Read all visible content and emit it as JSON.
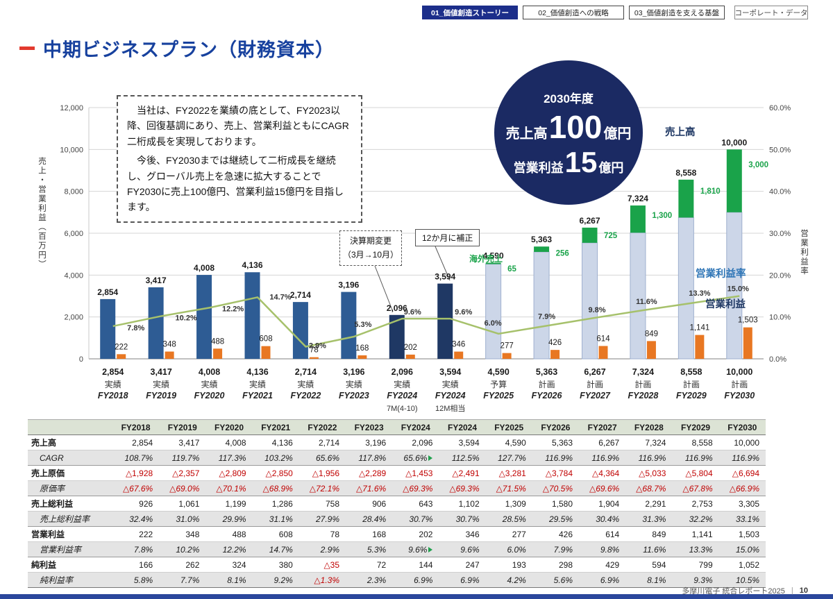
{
  "nav": {
    "tabs": [
      {
        "label": "01_価値創造ストーリー",
        "active": true
      },
      {
        "label": "02_価値創造への戦略",
        "active": false
      },
      {
        "label": "03_価値創造を支える基盤",
        "active": false
      },
      {
        "label": "コーポレート・データ",
        "active": false
      }
    ]
  },
  "title": "中期ビジネスプラン（財務資本）",
  "intro_box": {
    "p1": "　当社は、FY2022を業績の底として、FY2023以降、回復基調にあり、売上、営業利益ともにCAGR二桁成長を実現しております。",
    "p2": "　今後、FY2030までは継続して二桁成長を継続し、グローバル売上を急速に拡大することでFY2030に売上100億円、営業利益15億円を目指します。"
  },
  "target_badge": {
    "year": "2030年度",
    "sales_label": "売上高",
    "sales_value": "100",
    "sales_unit": "億円",
    "profit_label": "営業利益",
    "profit_value": "15",
    "profit_unit": "億円"
  },
  "chart_data": {
    "type": "bar+line",
    "left_axis": {
      "label": "売上・営業利益（百万円）",
      "min": 0,
      "max": 12000,
      "step": 2000,
      "ticks": [
        "0",
        "2,000",
        "4,000",
        "6,000",
        "8,000",
        "10,000",
        "12,000"
      ]
    },
    "right_axis": {
      "label": "営業利益率",
      "min": 0,
      "max": 60,
      "step": 10,
      "ticks": [
        "0.0%",
        "10.0%",
        "20.0%",
        "30.0%",
        "40.0%",
        "50.0%",
        "60.0%"
      ]
    },
    "categories": [
      {
        "fy": "FY2018",
        "status": "実績",
        "note": "",
        "bar": "actual"
      },
      {
        "fy": "FY2019",
        "status": "実績",
        "note": "",
        "bar": "actual"
      },
      {
        "fy": "FY2020",
        "status": "実績",
        "note": "",
        "bar": "actual"
      },
      {
        "fy": "FY2021",
        "status": "実績",
        "note": "",
        "bar": "actual"
      },
      {
        "fy": "FY2022",
        "status": "実績",
        "note": "",
        "bar": "actual"
      },
      {
        "fy": "FY2023",
        "status": "実績",
        "note": "",
        "bar": "actual"
      },
      {
        "fy": "FY2024",
        "status": "実績",
        "note": "7M(4-10)",
        "bar": "dark"
      },
      {
        "fy": "FY2024",
        "status": "実績",
        "note": "12M相当",
        "bar": "dark"
      },
      {
        "fy": "FY2025",
        "status": "予算",
        "note": "",
        "bar": "plan"
      },
      {
        "fy": "FY2026",
        "status": "計画",
        "note": "",
        "bar": "plan"
      },
      {
        "fy": "FY2027",
        "status": "計画",
        "note": "",
        "bar": "plan"
      },
      {
        "fy": "FY2028",
        "status": "計画",
        "note": "",
        "bar": "plan"
      },
      {
        "fy": "FY2029",
        "status": "計画",
        "note": "",
        "bar": "plan"
      },
      {
        "fy": "FY2030",
        "status": "計画",
        "note": "",
        "bar": "plan"
      }
    ],
    "series": {
      "revenue": {
        "name": "売上高",
        "values": [
          2854,
          3417,
          4008,
          4136,
          2714,
          3196,
          2096,
          3594,
          4590,
          5363,
          6267,
          7324,
          8558,
          10000
        ],
        "labels": [
          "2,854",
          "3,417",
          "4,008",
          "4,136",
          "2,714",
          "3,196",
          "2,096",
          "3,594",
          "4,590",
          "5,363",
          "6,267",
          "7,324",
          "8,558",
          "10,000"
        ]
      },
      "overseas": {
        "name": "海外売上",
        "values": [
          0,
          0,
          0,
          0,
          0,
          0,
          0,
          0,
          65,
          256,
          725,
          1300,
          1810,
          3000
        ],
        "labels": [
          "",
          "",
          "",
          "",
          "",
          "",
          "",
          "",
          "65",
          "256",
          "725",
          "1,300",
          "1,810",
          "3,000"
        ]
      },
      "op_profit": {
        "name": "営業利益",
        "values": [
          222,
          348,
          488,
          608,
          78,
          168,
          202,
          346,
          277,
          426,
          614,
          849,
          1141,
          1503
        ],
        "labels": [
          "222",
          "348",
          "488",
          "608",
          "78",
          "168",
          "202",
          "346",
          "277",
          "426",
          "614",
          "849",
          "1,141",
          "1,503"
        ]
      },
      "op_margin": {
        "name": "営業利益率",
        "values": [
          7.8,
          10.2,
          12.2,
          14.7,
          2.9,
          5.3,
          9.6,
          9.6,
          6.0,
          7.9,
          9.8,
          11.6,
          13.3,
          15.0
        ],
        "labels": [
          "7.8%",
          "10.2%",
          "12.2%",
          "14.7%",
          "2.9%",
          "5.3%",
          "9.6%",
          "9.6%",
          "6.0%",
          "7.9%",
          "9.8%",
          "11.6%",
          "13.3%",
          "15.0%"
        ]
      }
    },
    "annotations": {
      "callout1_line1": "決算期変更",
      "callout1_line2": "（3月→10月）",
      "callout2": "12か月に補正"
    },
    "colors": {
      "bar_actual": "#2e5c94",
      "bar_dark": "#1f3864",
      "bar_plan": "#ccd6e8",
      "bar_plan_border": "#9fb0cf",
      "overseas": "#1aa34a",
      "profit": "#e87722",
      "line": "#a6c16b"
    }
  },
  "table": {
    "header": [
      "",
      "FY2018",
      "FY2019",
      "FY2020",
      "FY2021",
      "FY2022",
      "FY2023",
      "FY2024",
      "FY2024",
      "FY2025",
      "FY2026",
      "FY2027",
      "FY2028",
      "FY2029",
      "FY2030"
    ],
    "rows": [
      {
        "label": "売上高",
        "type": "main",
        "values": [
          "2,854",
          "3,417",
          "4,008",
          "4,136",
          "2,714",
          "3,196",
          "2,096",
          "3,594",
          "4,590",
          "5,363",
          "6,267",
          "7,324",
          "8,558",
          "10,000"
        ]
      },
      {
        "label": "CAGR",
        "type": "sub",
        "marker_cells": [
          6
        ],
        "values": [
          "108.7%",
          "119.7%",
          "117.3%",
          "103.2%",
          "65.6%",
          "117.8%",
          "65.6%",
          "112.5%",
          "127.7%",
          "116.9%",
          "116.9%",
          "116.9%",
          "116.9%",
          "116.9%"
        ]
      },
      {
        "label": "売上原価",
        "type": "main",
        "values": [
          "△1,928",
          "△2,357",
          "△2,809",
          "△2,850",
          "△1,956",
          "△2,289",
          "△1,453",
          "△2,491",
          "△3,281",
          "△3,784",
          "△4,364",
          "△5,033",
          "△5,804",
          "△6,694"
        ]
      },
      {
        "label": "原価率",
        "type": "sub",
        "values": [
          "△67.6%",
          "△69.0%",
          "△70.1%",
          "△68.9%",
          "△72.1%",
          "△71.6%",
          "△69.3%",
          "△69.3%",
          "△71.5%",
          "△70.5%",
          "△69.6%",
          "△68.7%",
          "△67.8%",
          "△66.9%"
        ]
      },
      {
        "label": "売上総利益",
        "type": "main",
        "values": [
          "926",
          "1,061",
          "1,199",
          "1,286",
          "758",
          "906",
          "643",
          "1,102",
          "1,309",
          "1,580",
          "1,904",
          "2,291",
          "2,753",
          "3,305"
        ]
      },
      {
        "label": "売上総利益率",
        "type": "sub",
        "values": [
          "32.4%",
          "31.0%",
          "29.9%",
          "31.1%",
          "27.9%",
          "28.4%",
          "30.7%",
          "30.7%",
          "28.5%",
          "29.5%",
          "30.4%",
          "31.3%",
          "32.2%",
          "33.1%"
        ]
      },
      {
        "label": "営業利益",
        "type": "main",
        "values": [
          "222",
          "348",
          "488",
          "608",
          "78",
          "168",
          "202",
          "346",
          "277",
          "426",
          "614",
          "849",
          "1,141",
          "1,503"
        ]
      },
      {
        "label": "営業利益率",
        "type": "sub",
        "marker_cells": [
          6
        ],
        "values": [
          "7.8%",
          "10.2%",
          "12.2%",
          "14.7%",
          "2.9%",
          "5.3%",
          "9.6%",
          "9.6%",
          "6.0%",
          "7.9%",
          "9.8%",
          "11.6%",
          "13.3%",
          "15.0%"
        ]
      },
      {
        "label": "純利益",
        "type": "main",
        "values": [
          "166",
          "262",
          "324",
          "380",
          "△35",
          "72",
          "144",
          "247",
          "193",
          "298",
          "429",
          "594",
          "799",
          "1,052"
        ]
      },
      {
        "label": "純利益率",
        "type": "sub",
        "values": [
          "5.8%",
          "7.7%",
          "8.1%",
          "9.2%",
          "△1.3%",
          "2.3%",
          "6.9%",
          "6.9%",
          "4.2%",
          "5.6%",
          "6.9%",
          "8.1%",
          "9.3%",
          "10.5%"
        ]
      }
    ]
  },
  "footer": {
    "text": "多摩川電子 統合レポート2025",
    "sep": "|",
    "page": "10"
  }
}
